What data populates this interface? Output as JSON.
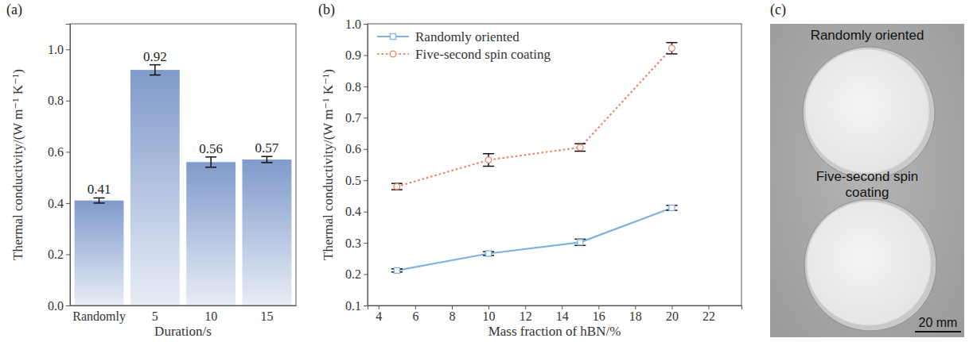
{
  "chart_data": [
    {
      "type": "bar",
      "panel_label": "(a)",
      "x_label": "Duration/s",
      "y_label": "Thermal conductivity/(W m⁻¹ K⁻¹)",
      "categories": [
        "Randomly",
        "5",
        "10",
        "15"
      ],
      "values": [
        0.41,
        0.92,
        0.56,
        0.57
      ],
      "errors": [
        0.01,
        0.02,
        0.02,
        0.012
      ],
      "color": "#7f9acb",
      "data_labels": true,
      "ylim": [
        0,
        1.1
      ],
      "yticks": [
        {
          "value": 0,
          "label": "0.0"
        },
        0.2,
        0.4,
        0.6,
        0.8,
        {
          "value": 1,
          "label": "1.0"
        }
      ]
    },
    {
      "type": "line",
      "panel_label": "(b)",
      "x_label": "Mass fraction of hBN/%",
      "y_label": "Thermal conductivity/(W m⁻¹ K⁻¹)",
      "x": [
        5,
        10,
        15,
        20
      ],
      "series": [
        {
          "name": "Randomly oriented",
          "color": "#7fb2de",
          "marker": "square",
          "line_style": "solid",
          "values": [
            0.212,
            0.266,
            0.302,
            0.412
          ],
          "errors": [
            0.005,
            0.006,
            0.01,
            0.008
          ]
        },
        {
          "name": "Five-second spin coating",
          "color": "#f08068",
          "marker": "circle",
          "line_style": "dotted",
          "values": [
            0.48,
            0.565,
            0.605,
            0.922
          ],
          "errors": [
            0.01,
            0.02,
            0.012,
            0.018
          ]
        }
      ],
      "xlim": [
        3.4,
        23.8
      ],
      "ylim": [
        0.1,
        1.0
      ],
      "xticks": [
        4,
        6,
        8,
        10,
        12,
        14,
        16,
        18,
        20,
        22
      ],
      "yticks": [
        0.1,
        0.2,
        0.3,
        0.4,
        0.5,
        0.6,
        0.7,
        0.8,
        0.9,
        {
          "value": 1,
          "label": "1.0"
        }
      ],
      "legend": "upper left"
    }
  ],
  "photo": {
    "panel_label": "(c)",
    "labels": [
      "Randomly oriented",
      "Five-second spin coating"
    ],
    "scale_bar": "20 mm"
  }
}
